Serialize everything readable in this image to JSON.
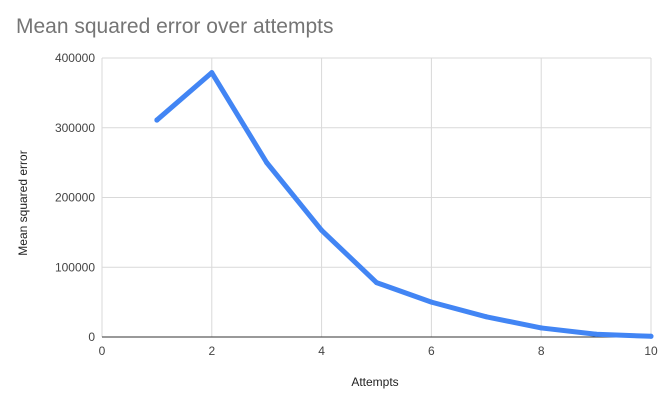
{
  "chart_data": {
    "type": "line",
    "title": "Mean squared error over attempts",
    "xlabel": "Attempts",
    "ylabel": "Mean squared error",
    "xlim": [
      0,
      10
    ],
    "ylim": [
      0,
      400000
    ],
    "x_ticks": [
      0,
      2,
      4,
      6,
      8,
      10
    ],
    "y_ticks": [
      0,
      100000,
      200000,
      300000,
      400000
    ],
    "grid": true,
    "legend": "none",
    "series": [
      {
        "color": "#4285f4",
        "x": [
          1,
          2,
          3,
          4,
          5,
          6,
          7,
          8,
          9,
          10
        ],
        "y": [
          311000,
          379000,
          250000,
          153000,
          78000,
          50000,
          29000,
          13000,
          4000,
          1000
        ]
      }
    ]
  }
}
